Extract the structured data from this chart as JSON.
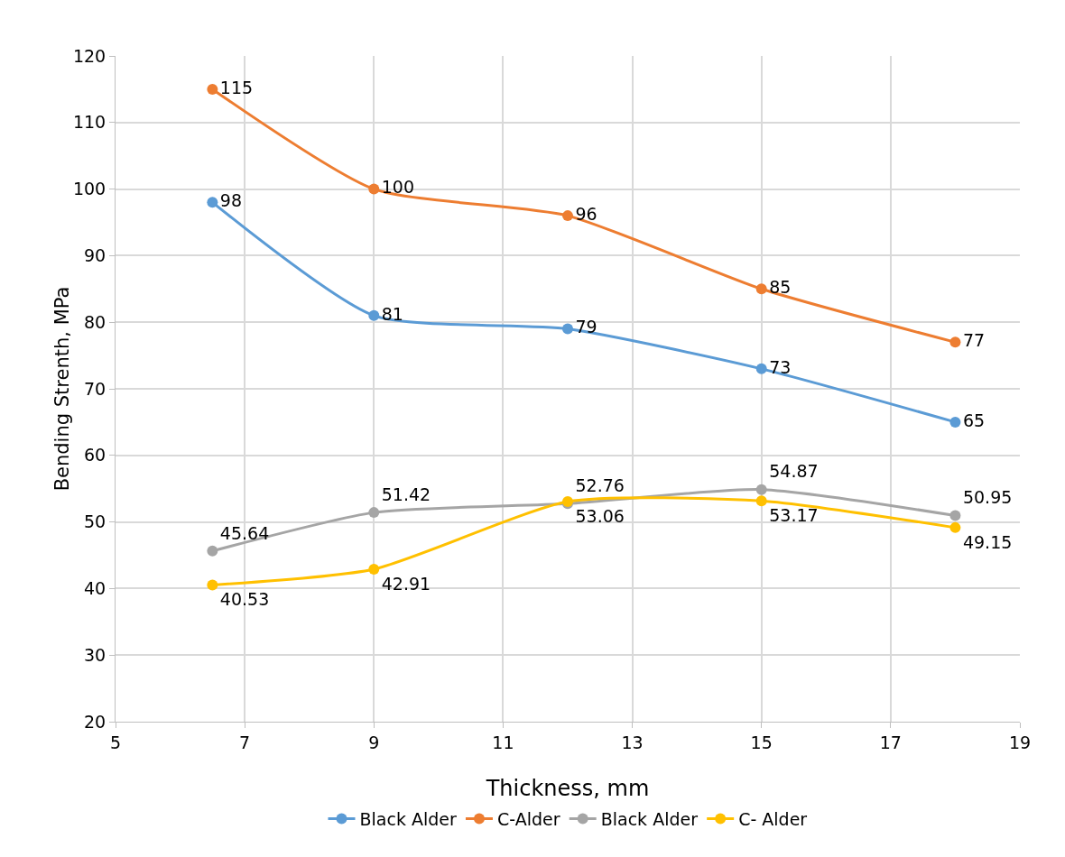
{
  "chart_data": {
    "type": "line",
    "xlabel": "Thickness, mm",
    "ylabel": "Bending Strenth, MPa",
    "x": [
      6.5,
      9,
      12,
      15,
      18
    ],
    "series": [
      {
        "name": "Black Alder",
        "color": "#5b9bd5",
        "values": [
          98,
          81,
          79,
          73,
          65
        ],
        "value_labels": [
          "98",
          "81",
          "79",
          "73",
          "65"
        ]
      },
      {
        "name": "C-Alder",
        "color": "#ed7d31",
        "values": [
          115,
          100,
          96,
          85,
          77
        ],
        "value_labels": [
          "115",
          "100",
          "96",
          "85",
          "77"
        ]
      },
      {
        "name": "Black Alder",
        "color": "#a5a5a5",
        "values": [
          45.64,
          51.42,
          52.76,
          54.87,
          50.95
        ]
      },
      {
        "name": "C- Alder",
        "color": "#ffc000",
        "values": [
          40.53,
          42.91,
          53.06,
          53.17,
          49.15
        ]
      }
    ],
    "data_labels": true,
    "xlim": [
      5,
      19
    ],
    "xticks": [
      5,
      7,
      9,
      11,
      13,
      15,
      17,
      19
    ],
    "ylim": [
      20,
      120
    ],
    "yticks": [
      20,
      30,
      40,
      50,
      60,
      70,
      80,
      90,
      100,
      110,
      120
    ],
    "grid": true,
    "legend": "bottom",
    "marker": "circle",
    "line_style": "solid"
  }
}
